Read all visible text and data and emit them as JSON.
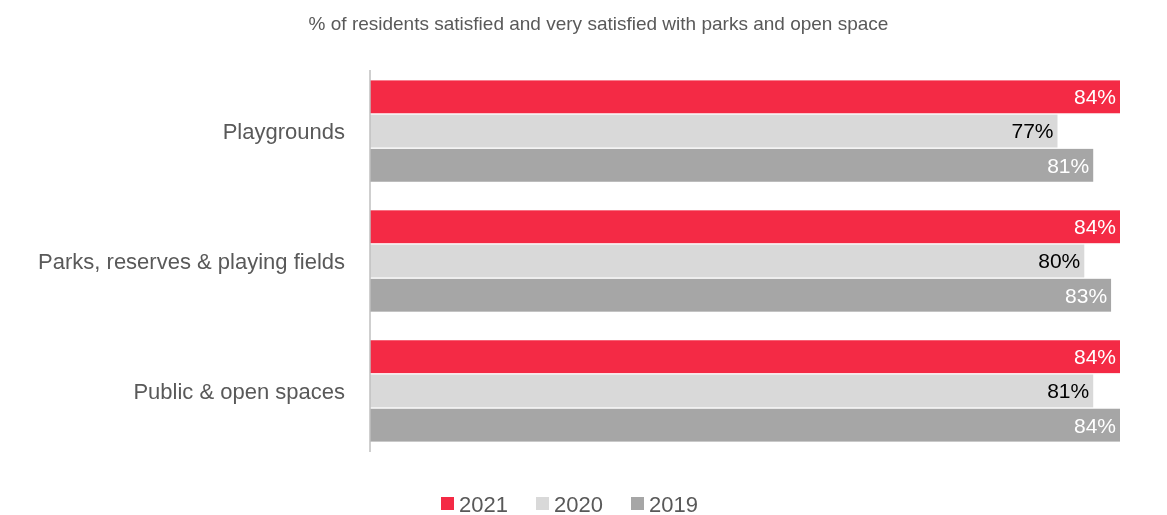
{
  "chart_data": {
    "type": "bar",
    "orientation": "horizontal",
    "title": "% of residents satisfied and very satisfied with parks and open space",
    "categories": [
      "Playgrounds",
      "Parks, reserves & playing fields",
      "Public & open spaces"
    ],
    "series": [
      {
        "name": "2021",
        "color": "#f42a45",
        "values": [
          84,
          84,
          84
        ],
        "value_labels": [
          "84%",
          "84%",
          "84%"
        ]
      },
      {
        "name": "2020",
        "color": "#d9d9d9",
        "values": [
          77,
          80,
          81
        ],
        "value_labels": [
          "77%",
          "80%",
          "81%"
        ]
      },
      {
        "name": "2019",
        "color": "#a6a6a6",
        "values": [
          81,
          83,
          84
        ],
        "value_labels": [
          "81%",
          "83%",
          "84%"
        ]
      }
    ],
    "legend": "bottom"
  }
}
